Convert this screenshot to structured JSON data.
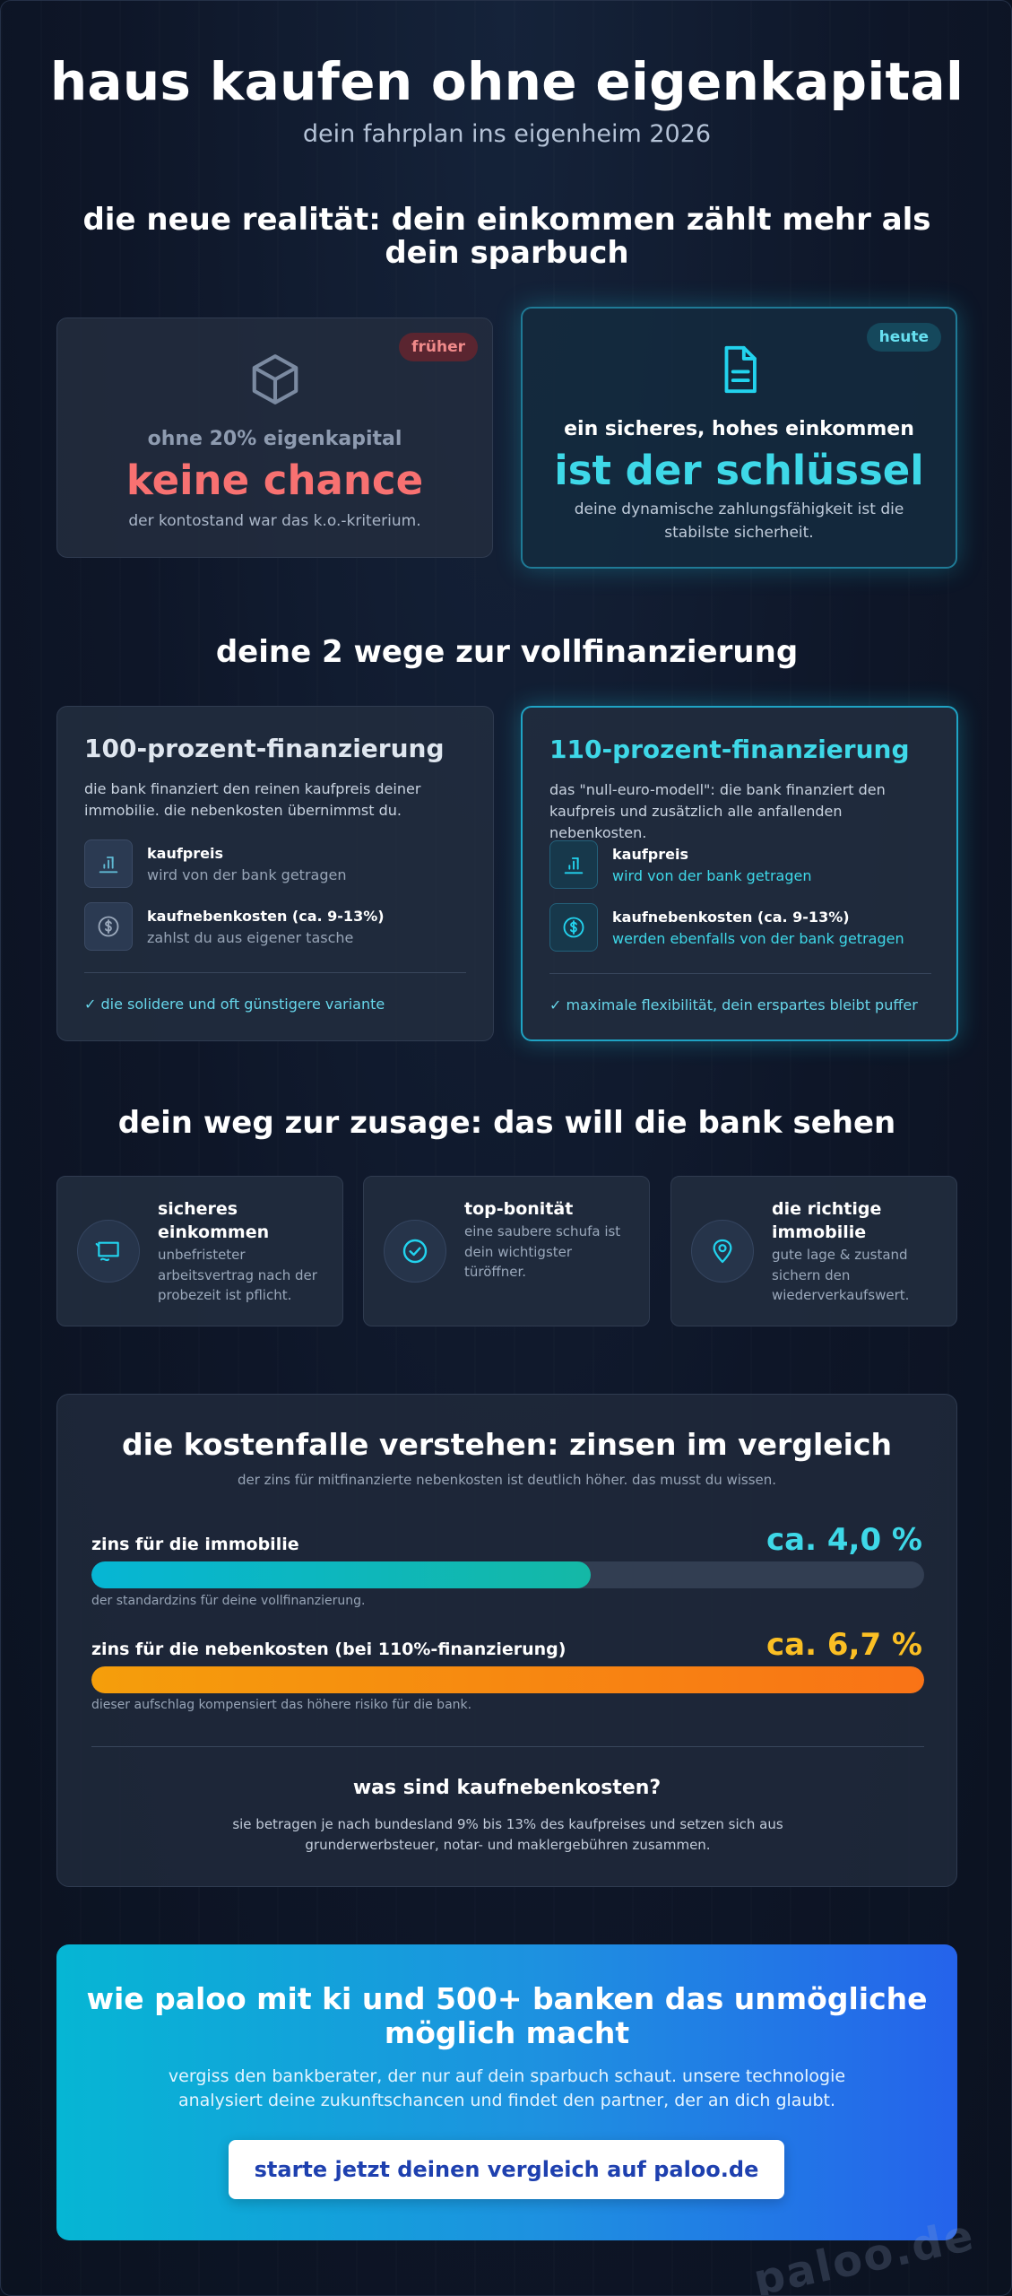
{
  "header": {
    "title": "haus kaufen ohne eigenkapital",
    "subtitle": "dein fahrplan ins eigenheim 2026"
  },
  "reality": {
    "title": "die neue realität: dein einkommen zählt mehr als dein sparbuch",
    "before": {
      "badge": "früher",
      "icon": "box-icon",
      "lead": "ohne 20% eigenkapital",
      "big": "keine chance",
      "desc": "der kontostand war das k.o.-kriterium."
    },
    "now": {
      "badge": "heute",
      "icon": "document-icon",
      "lead": "ein sicheres, hohes einkommen",
      "big": "ist der schlüssel",
      "desc": "deine dynamische zahlungsfähigkeit ist die stabilste sicherheit."
    }
  },
  "ways": {
    "title": "deine 2 wege zur vollfinanzierung",
    "cards": [
      {
        "title": "100-prozent-finanzierung",
        "desc": "die bank finanziert den reinen kaufpreis deiner immobilie. die nebenkosten übernimmst du.",
        "rows": [
          {
            "icon": "chart-icon",
            "title": "kaufpreis",
            "sub": "wird von der bank getragen"
          },
          {
            "icon": "dollar-icon",
            "title": "kaufnebenkosten (ca. 9-13%)",
            "sub": "zahlst du aus eigener tasche"
          }
        ],
        "footer": "✓ die solidere und oft günstigere variante"
      },
      {
        "title": "110-prozent-finanzierung",
        "desc": "das \"null-euro-modell\": die bank finanziert den kaufpreis und zusätzlich alle anfallenden nebenkosten.",
        "rows": [
          {
            "icon": "chart-icon",
            "title": "kaufpreis",
            "sub": "wird von der bank getragen"
          },
          {
            "icon": "dollar-icon",
            "title": "kaufnebenkosten (ca. 9-13%)",
            "sub": "werden ebenfalls von der bank getragen"
          }
        ],
        "footer": "✓ maximale flexibilität, dein erspartes bleibt puffer"
      }
    ]
  },
  "bank": {
    "title": "dein weg zur zusage: das will die bank sehen",
    "items": [
      {
        "icon": "contract-icon",
        "title": "sicheres einkommen",
        "text": "unbefristeter arbeitsvertrag nach der probezeit ist pflicht."
      },
      {
        "icon": "check-circle-icon",
        "title": "top-bonität",
        "text": "eine saubere schufa ist dein wichtigster türöffner."
      },
      {
        "icon": "location-pin-icon",
        "title": "die richtige immobilie",
        "text": "gute lage & zustand sichern den wiederverkaufswert."
      }
    ]
  },
  "costs": {
    "title": "die kostenfalle verstehen: zinsen im vergleich",
    "subtitle": "der zins für mitfinanzierte nebenkosten ist deutlich höher. das musst du wissen.",
    "bars": [
      {
        "label": "zins für die immobilie",
        "pct_label": "ca. 4,0 %",
        "fill": 0.6,
        "note": "der standardzins für deine vollfinanzierung."
      },
      {
        "label": "zins für die nebenkosten (bei 110%-finanzierung)",
        "pct_label": "ca. 6,7 %",
        "fill": 1.0,
        "note": "dieser aufschlag kompensiert das höhere risiko für die bank."
      }
    ],
    "faq_title": "was sind kaufnebenkosten?",
    "faq_text": "sie betragen je nach bundesland 9% bis 13% des kaufpreises und setzen sich aus grunderwerbsteuer, notar- und maklergebühren zusammen."
  },
  "cta": {
    "title": "wie paloo mit ki und 500+ banken das unmögliche möglich macht",
    "text": "vergiss den bankberater, der nur auf dein sparbuch schaut. unsere technologie analysiert deine zukunftschancen und findet den partner, der an dich glaubt.",
    "button": "starte jetzt deinen vergleich auf paloo.de"
  },
  "watermark": "paloo.de",
  "colors": {
    "cyan": "#22d3ee",
    "teal": "#14b8a6",
    "red": "#f87171",
    "orange": "#f97316",
    "amber": "#fbbf24"
  }
}
